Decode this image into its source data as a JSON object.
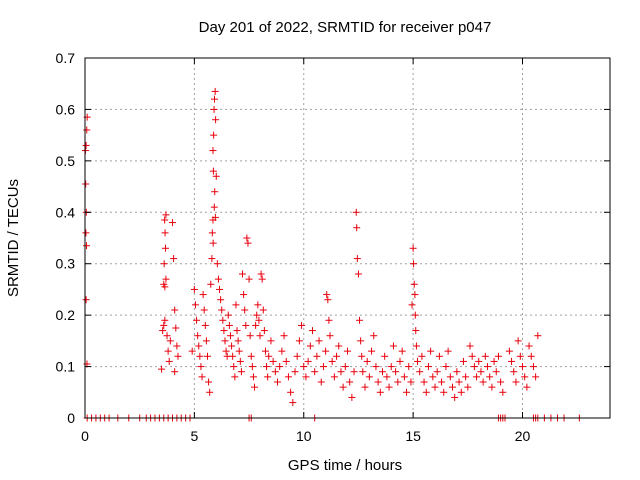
{
  "chart_data": {
    "type": "scatter",
    "title": "Day 201 of 2022, SRMTID for receiver p047",
    "xlabel": "GPS time / hours",
    "ylabel": "SRMTID / TECUs",
    "xlim": [
      0,
      24
    ],
    "ylim": [
      0,
      0.7
    ],
    "xticks": [
      0,
      5,
      10,
      15,
      20
    ],
    "xtick_labels": [
      "0",
      "5",
      "10",
      "15",
      "20"
    ],
    "yticks": [
      0,
      0.1,
      0.2,
      0.3,
      0.4,
      0.5,
      0.6,
      0.7
    ],
    "ytick_labels": [
      "0",
      "0.1",
      "0.2",
      "0.3",
      "0.4",
      "0.5",
      "0.6",
      "0.7"
    ],
    "grid": true,
    "marker": "+",
    "color": "#e8000b",
    "series": [
      {
        "name": "SRMTID",
        "points": [
          [
            0.02,
            0.52
          ],
          [
            0.05,
            0.53
          ],
          [
            0.08,
            0.56
          ],
          [
            0.1,
            0.585
          ],
          [
            0.03,
            0.455
          ],
          [
            0.06,
            0.4
          ],
          [
            0.04,
            0.36
          ],
          [
            0.07,
            0.335
          ],
          [
            0.05,
            0.23
          ],
          [
            0.09,
            0.105
          ],
          [
            3.5,
            0.095
          ],
          [
            3.55,
            0.17
          ],
          [
            3.6,
            0.18
          ],
          [
            3.65,
            0.19
          ],
          [
            3.6,
            0.26
          ],
          [
            3.65,
            0.255
          ],
          [
            3.7,
            0.27
          ],
          [
            3.62,
            0.3
          ],
          [
            3.68,
            0.33
          ],
          [
            3.66,
            0.36
          ],
          [
            3.64,
            0.385
          ],
          [
            3.7,
            0.395
          ],
          [
            3.75,
            0.16
          ],
          [
            3.8,
            0.13
          ],
          [
            3.85,
            0.11
          ],
          [
            3.9,
            0.15
          ],
          [
            4.0,
            0.38
          ],
          [
            4.05,
            0.31
          ],
          [
            4.1,
            0.21
          ],
          [
            4.15,
            0.175
          ],
          [
            4.2,
            0.14
          ],
          [
            4.25,
            0.12
          ],
          [
            4.1,
            0.09
          ],
          [
            4.9,
            0.13
          ],
          [
            5.0,
            0.25
          ],
          [
            5.05,
            0.22
          ],
          [
            5.1,
            0.19
          ],
          [
            5.15,
            0.16
          ],
          [
            5.2,
            0.14
          ],
          [
            5.25,
            0.12
          ],
          [
            5.3,
            0.1
          ],
          [
            5.35,
            0.08
          ],
          [
            5.4,
            0.24
          ],
          [
            5.45,
            0.21
          ],
          [
            5.5,
            0.18
          ],
          [
            5.55,
            0.15
          ],
          [
            5.6,
            0.12
          ],
          [
            5.65,
            0.07
          ],
          [
            5.7,
            0.05
          ],
          [
            5.75,
            0.26
          ],
          [
            5.8,
            0.31
          ],
          [
            5.82,
            0.36
          ],
          [
            5.85,
            0.385
          ],
          [
            5.85,
            0.52
          ],
          [
            5.87,
            0.48
          ],
          [
            5.9,
            0.6
          ],
          [
            5.92,
            0.62
          ],
          [
            5.95,
            0.635
          ],
          [
            5.97,
            0.58
          ],
          [
            5.88,
            0.55
          ],
          [
            5.93,
            0.44
          ],
          [
            5.91,
            0.41
          ],
          [
            5.86,
            0.34
          ],
          [
            5.96,
            0.39
          ],
          [
            6.0,
            0.47
          ],
          [
            6.05,
            0.3
          ],
          [
            6.1,
            0.27
          ],
          [
            6.15,
            0.25
          ],
          [
            6.2,
            0.23
          ],
          [
            6.25,
            0.21
          ],
          [
            6.3,
            0.19
          ],
          [
            6.35,
            0.17
          ],
          [
            6.4,
            0.15
          ],
          [
            6.45,
            0.13
          ],
          [
            6.5,
            0.12
          ],
          [
            6.55,
            0.2
          ],
          [
            6.6,
            0.18
          ],
          [
            6.65,
            0.16
          ],
          [
            6.7,
            0.14
          ],
          [
            6.75,
            0.12
          ],
          [
            6.8,
            0.1
          ],
          [
            6.85,
            0.08
          ],
          [
            6.9,
            0.22
          ],
          [
            6.95,
            0.17
          ],
          [
            7.0,
            0.15
          ],
          [
            7.05,
            0.13
          ],
          [
            7.1,
            0.11
          ],
          [
            7.15,
            0.09
          ],
          [
            7.2,
            0.28
          ],
          [
            7.25,
            0.24
          ],
          [
            7.3,
            0.21
          ],
          [
            7.35,
            0.18
          ],
          [
            7.4,
            0.35
          ],
          [
            7.45,
            0.34
          ],
          [
            7.5,
            0.27
          ],
          [
            7.55,
            0.16
          ],
          [
            7.6,
            0.12
          ],
          [
            7.65,
            0.1
          ],
          [
            7.7,
            0.08
          ],
          [
            7.75,
            0.06
          ],
          [
            7.8,
            0.18
          ],
          [
            7.85,
            0.2
          ],
          [
            7.9,
            0.22
          ],
          [
            7.95,
            0.19
          ],
          [
            8.0,
            0.16
          ],
          [
            8.05,
            0.28
          ],
          [
            8.1,
            0.27
          ],
          [
            8.15,
            0.21
          ],
          [
            8.2,
            0.17
          ],
          [
            8.25,
            0.13
          ],
          [
            8.3,
            0.1
          ],
          [
            8.35,
            0.08
          ],
          [
            8.4,
            0.12
          ],
          [
            8.5,
            0.15
          ],
          [
            8.6,
            0.11
          ],
          [
            8.7,
            0.09
          ],
          [
            8.8,
            0.07
          ],
          [
            8.9,
            0.1
          ],
          [
            9.0,
            0.13
          ],
          [
            9.1,
            0.16
          ],
          [
            9.2,
            0.11
          ],
          [
            9.3,
            0.08
          ],
          [
            9.4,
            0.05
          ],
          [
            9.5,
            0.03
          ],
          [
            9.6,
            0.09
          ],
          [
            9.7,
            0.12
          ],
          [
            9.8,
            0.15
          ],
          [
            9.9,
            0.18
          ],
          [
            10.0,
            0.1
          ],
          [
            10.1,
            0.08
          ],
          [
            10.2,
            0.11
          ],
          [
            10.3,
            0.14
          ],
          [
            10.4,
            0.17
          ],
          [
            10.5,
            0.09
          ],
          [
            10.6,
            0.12
          ],
          [
            10.7,
            0.15
          ],
          [
            10.8,
            0.07
          ],
          [
            10.9,
            0.1
          ],
          [
            11.0,
            0.13
          ],
          [
            11.05,
            0.24
          ],
          [
            11.1,
            0.23
          ],
          [
            11.15,
            0.19
          ],
          [
            11.2,
            0.16
          ],
          [
            11.3,
            0.11
          ],
          [
            11.4,
            0.08
          ],
          [
            11.5,
            0.12
          ],
          [
            11.6,
            0.14
          ],
          [
            11.7,
            0.09
          ],
          [
            11.8,
            0.06
          ],
          [
            11.9,
            0.1
          ],
          [
            12.0,
            0.13
          ],
          [
            12.1,
            0.07
          ],
          [
            12.2,
            0.04
          ],
          [
            12.3,
            0.09
          ],
          [
            12.4,
            0.4
          ],
          [
            12.42,
            0.37
          ],
          [
            12.45,
            0.31
          ],
          [
            12.5,
            0.28
          ],
          [
            12.55,
            0.19
          ],
          [
            12.6,
            0.15
          ],
          [
            12.65,
            0.12
          ],
          [
            12.7,
            0.09
          ],
          [
            12.8,
            0.06
          ],
          [
            12.9,
            0.11
          ],
          [
            13.0,
            0.08
          ],
          [
            13.1,
            0.13
          ],
          [
            13.2,
            0.16
          ],
          [
            13.3,
            0.1
          ],
          [
            13.4,
            0.07
          ],
          [
            13.5,
            0.05
          ],
          [
            13.6,
            0.09
          ],
          [
            13.7,
            0.12
          ],
          [
            13.8,
            0.08
          ],
          [
            13.9,
            0.06
          ],
          [
            14.0,
            0.1
          ],
          [
            14.1,
            0.14
          ],
          [
            14.2,
            0.09
          ],
          [
            14.3,
            0.07
          ],
          [
            14.4,
            0.11
          ],
          [
            14.5,
            0.13
          ],
          [
            14.6,
            0.08
          ],
          [
            14.7,
            0.05
          ],
          [
            14.8,
            0.1
          ],
          [
            14.9,
            0.07
          ],
          [
            14.95,
            0.22
          ],
          [
            15.0,
            0.33
          ],
          [
            15.02,
            0.3
          ],
          [
            15.05,
            0.26
          ],
          [
            15.08,
            0.24
          ],
          [
            15.1,
            0.2
          ],
          [
            15.12,
            0.17
          ],
          [
            15.15,
            0.14
          ],
          [
            15.2,
            0.11
          ],
          [
            15.3,
            0.09
          ],
          [
            15.4,
            0.12
          ],
          [
            15.5,
            0.07
          ],
          [
            15.6,
            0.05
          ],
          [
            15.7,
            0.1
          ],
          [
            15.8,
            0.13
          ],
          [
            15.9,
            0.08
          ],
          [
            16.0,
            0.06
          ],
          [
            16.1,
            0.09
          ],
          [
            16.2,
            0.12
          ],
          [
            16.3,
            0.07
          ],
          [
            16.4,
            0.05
          ],
          [
            16.5,
            0.1
          ],
          [
            16.6,
            0.13
          ],
          [
            16.7,
            0.08
          ],
          [
            16.8,
            0.06
          ],
          [
            16.9,
            0.04
          ],
          [
            17.0,
            0.09
          ],
          [
            17.1,
            0.07
          ],
          [
            17.2,
            0.05
          ],
          [
            17.3,
            0.11
          ],
          [
            17.4,
            0.08
          ],
          [
            17.5,
            0.06
          ],
          [
            17.6,
            0.14
          ],
          [
            17.7,
            0.12
          ],
          [
            17.8,
            0.1
          ],
          [
            17.9,
            0.08
          ],
          [
            18.0,
            0.11
          ],
          [
            18.1,
            0.09
          ],
          [
            18.2,
            0.07
          ],
          [
            18.3,
            0.12
          ],
          [
            18.4,
            0.1
          ],
          [
            18.5,
            0.08
          ],
          [
            18.6,
            0.06
          ],
          [
            18.7,
            0.11
          ],
          [
            18.8,
            0.09
          ],
          [
            18.9,
            0.12
          ],
          [
            19.0,
            0.07
          ],
          [
            19.1,
            0.05
          ],
          [
            19.4,
            0.13
          ],
          [
            19.5,
            0.11
          ],
          [
            19.6,
            0.09
          ],
          [
            19.7,
            0.07
          ],
          [
            19.8,
            0.15
          ],
          [
            19.9,
            0.12
          ],
          [
            20.0,
            0.1
          ],
          [
            20.1,
            0.08
          ],
          [
            20.2,
            0.06
          ],
          [
            20.3,
            0.14
          ],
          [
            20.4,
            0.12
          ],
          [
            20.5,
            0.1
          ],
          [
            20.6,
            0.08
          ],
          [
            20.7,
            0.16
          ],
          [
            0.1,
            0
          ],
          [
            0.3,
            0
          ],
          [
            0.5,
            0
          ],
          [
            0.7,
            0
          ],
          [
            0.9,
            0
          ],
          [
            1.1,
            0
          ],
          [
            1.5,
            0
          ],
          [
            2.0,
            0
          ],
          [
            2.5,
            0
          ],
          [
            2.8,
            0
          ],
          [
            3.0,
            0
          ],
          [
            3.2,
            0
          ],
          [
            3.4,
            0
          ],
          [
            3.6,
            0
          ],
          [
            3.8,
            0
          ],
          [
            4.0,
            0
          ],
          [
            4.2,
            0
          ],
          [
            4.4,
            0
          ],
          [
            4.6,
            0
          ],
          [
            4.8,
            0
          ],
          [
            7.5,
            0
          ],
          [
            7.6,
            0
          ],
          [
            10.5,
            0
          ],
          [
            18.9,
            0
          ],
          [
            19.0,
            0
          ],
          [
            19.1,
            0
          ],
          [
            19.2,
            0
          ],
          [
            20.5,
            0
          ],
          [
            20.6,
            0
          ],
          [
            20.7,
            0
          ],
          [
            21.0,
            0
          ],
          [
            21.3,
            0
          ],
          [
            21.6,
            0
          ],
          [
            21.9,
            0
          ],
          [
            22.6,
            0
          ]
        ]
      }
    ]
  }
}
